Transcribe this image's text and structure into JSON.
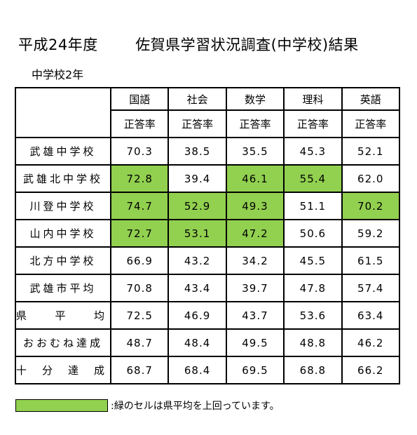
{
  "header": {
    "year": "平成24年度",
    "title": "佐賀県学習状況調査(中学校)結果",
    "grade": "中学校2年"
  },
  "subjects": [
    "国語",
    "社会",
    "数学",
    "理科",
    "英語"
  ],
  "metric_label": "正答率",
  "rows": [
    {
      "name": "武雄中学校",
      "values": [
        "70.3",
        "38.5",
        "35.5",
        "45.3",
        "52.1"
      ],
      "highlight": [
        false,
        false,
        false,
        false,
        false
      ]
    },
    {
      "name": "武雄北中学校",
      "values": [
        "72.8",
        "39.4",
        "46.1",
        "55.4",
        "62.0"
      ],
      "highlight": [
        true,
        false,
        true,
        true,
        false
      ]
    },
    {
      "name": "川登中学校",
      "values": [
        "74.7",
        "52.9",
        "49.3",
        "51.1",
        "70.2"
      ],
      "highlight": [
        true,
        true,
        true,
        false,
        true
      ]
    },
    {
      "name": "山内中学校",
      "values": [
        "72.7",
        "53.1",
        "47.2",
        "50.6",
        "59.2"
      ],
      "highlight": [
        true,
        true,
        true,
        false,
        false
      ]
    },
    {
      "name": "北方中学校",
      "values": [
        "66.9",
        "43.2",
        "34.2",
        "45.5",
        "61.5"
      ],
      "highlight": [
        false,
        false,
        false,
        false,
        false
      ]
    },
    {
      "name": "武雄市平均",
      "values": [
        "70.8",
        "43.4",
        "39.7",
        "47.8",
        "57.4"
      ],
      "highlight": [
        false,
        false,
        false,
        false,
        false
      ]
    },
    {
      "name": "県平均",
      "values": [
        "72.5",
        "46.9",
        "43.7",
        "53.6",
        "63.4"
      ],
      "highlight": [
        false,
        false,
        false,
        false,
        false
      ],
      "spread": true
    },
    {
      "name": "おおむね達成",
      "values": [
        "48.7",
        "48.4",
        "49.5",
        "48.8",
        "46.2"
      ],
      "highlight": [
        false,
        false,
        false,
        false,
        false
      ]
    },
    {
      "name": "十分達成",
      "values": [
        "68.7",
        "68.4",
        "69.5",
        "68.8",
        "66.2"
      ],
      "highlight": [
        false,
        false,
        false,
        false,
        false
      ],
      "spread": true
    }
  ],
  "legend": {
    "text": ":緑のセルは県平均を上回っています。",
    "color": "#92d050"
  }
}
